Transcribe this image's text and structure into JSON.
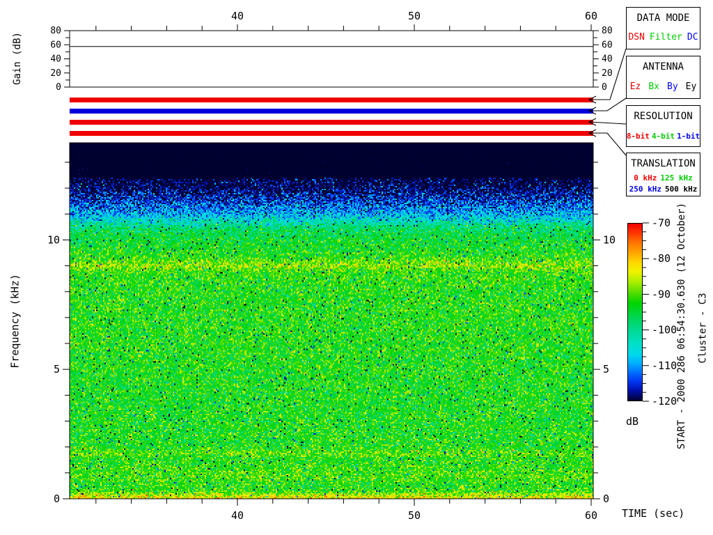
{
  "annotations": {
    "start_label": "START - 2000 286 06:54:30.630 (12 October)",
    "spacecraft_label": "Cluster - C3"
  },
  "gain_plot": {
    "ylabel": "Gain (dB)",
    "y_range_db": [
      0,
      80
    ],
    "y_major_ticks": [
      0,
      20,
      40,
      60,
      80
    ],
    "y_minor_step_db": 10,
    "gain_line_db": 57.5
  },
  "time_axis": {
    "label": "TIME (sec)",
    "range_sec": [
      30.51,
      60.12
    ],
    "major_ticks": [
      40,
      50
    ],
    "minor_step_sec": 2
  },
  "freq_axis": {
    "label": "Frequency (kHz)",
    "range_khz": [
      0,
      13.75
    ],
    "major_ticks": [
      0,
      5,
      10
    ],
    "minor_step_khz": 1
  },
  "status_bars": [
    {
      "name": "data-mode",
      "selected": "DSN",
      "color": "#ee0000"
    },
    {
      "name": "antenna",
      "selected": "By",
      "color": "#0000dd"
    },
    {
      "name": "resolution",
      "selected": "8-bit",
      "color": "#ee0000"
    },
    {
      "name": "translation",
      "selected": "0 kHz",
      "color": "#ee0000"
    }
  ],
  "legend_boxes": [
    {
      "title": "DATA MODE",
      "rows": [
        [
          {
            "label": "DSN",
            "color": "#ee0000"
          },
          {
            "label": "Filter",
            "color": "#00cc00"
          },
          {
            "label": "DC",
            "color": "#0000ee"
          }
        ]
      ]
    },
    {
      "title": "ANTENNA",
      "rows": [
        [
          {
            "label": "Ez",
            "color": "#ee0000"
          },
          {
            "label": "Bx",
            "color": "#00cc00"
          },
          {
            "label": "By",
            "color": "#0000ee"
          },
          {
            "label": "Ey",
            "color": "#000000"
          }
        ]
      ]
    },
    {
      "title": "RESOLUTION",
      "rows": [
        [
          {
            "label": "8-bit",
            "color": "#ee0000"
          },
          {
            "label": "4-bit",
            "color": "#00cc00"
          },
          {
            "label": "1-bit",
            "color": "#0000ee"
          }
        ]
      ]
    },
    {
      "title": "TRANSLATION",
      "rows": [
        [
          {
            "label": "0 kHz",
            "color": "#ee0000"
          },
          {
            "label": "125 kHz",
            "color": "#00cc00"
          }
        ],
        [
          {
            "label": "250 kHz",
            "color": "#0000ee"
          },
          {
            "label": "500 kHz",
            "color": "#000000"
          }
        ]
      ]
    }
  ],
  "colorbar": {
    "unit": "dB",
    "range_db": [
      -70,
      -120
    ],
    "major_ticks": [
      -70,
      -80,
      -90,
      -100,
      -110,
      -120
    ],
    "minor_step_db": 2.5,
    "stops": [
      [
        0.0,
        "#ee0000"
      ],
      [
        0.05,
        "#ff3300"
      ],
      [
        0.11,
        "#ff7700"
      ],
      [
        0.17,
        "#ffaa00"
      ],
      [
        0.22,
        "#ffd800"
      ],
      [
        0.27,
        "#f2f200"
      ],
      [
        0.33,
        "#aaee00"
      ],
      [
        0.39,
        "#55dd00"
      ],
      [
        0.45,
        "#00d500"
      ],
      [
        0.52,
        "#00d549"
      ],
      [
        0.6,
        "#00da91"
      ],
      [
        0.68,
        "#00e0c8"
      ],
      [
        0.74,
        "#00d9ec"
      ],
      [
        0.79,
        "#00aeff"
      ],
      [
        0.84,
        "#0071ff"
      ],
      [
        0.89,
        "#0038f2"
      ],
      [
        0.94,
        "#0012b2"
      ],
      [
        1.0,
        "#010130"
      ]
    ]
  },
  "chart_data": [
    {
      "type": "line",
      "title": "Receiver gain vs time",
      "xlabel": "TIME (sec)",
      "ylabel": "Gain (dB)",
      "x_range": [
        30.51,
        60.12
      ],
      "ylim": [
        0,
        80
      ],
      "series": [
        {
          "name": "gain",
          "shape": "constant",
          "value_db": 57.5
        }
      ]
    },
    {
      "type": "heatmap",
      "subtype": "spectrogram",
      "xlabel": "TIME (sec)",
      "ylabel": "Frequency (kHz)",
      "x_range_sec": [
        30.51,
        60.12
      ],
      "y_range_khz": [
        0,
        13.75
      ],
      "color_range_db": [
        -70,
        -120
      ],
      "profile_points_khz_db": [
        [
          13.75,
          -123
        ],
        [
          12.4,
          -123
        ],
        [
          11.9,
          -119
        ],
        [
          11.4,
          -114
        ],
        [
          11.0,
          -109
        ],
        [
          10.7,
          -103
        ],
        [
          10.45,
          -98
        ],
        [
          10.2,
          -95.5
        ],
        [
          9.7,
          -93.5
        ],
        [
          9.3,
          -92
        ],
        [
          9.0,
          -87
        ],
        [
          8.75,
          -91.5
        ],
        [
          8.0,
          -92.5
        ],
        [
          6.0,
          -92.5
        ],
        [
          4.0,
          -93
        ],
        [
          2.0,
          -93
        ],
        [
          1.75,
          -89.5
        ],
        [
          1.55,
          -92.5
        ],
        [
          0.85,
          -90.5
        ],
        [
          0.55,
          -92.5
        ],
        [
          0.3,
          -91.5
        ],
        [
          0.15,
          -86
        ],
        [
          0.0,
          -82
        ]
      ],
      "sigma_zones": [
        {
          "f_min": 12.4,
          "f_max": 13.75,
          "sigma": 1.2
        },
        {
          "f_min": 10.45,
          "f_max": 12.4,
          "sigma": 5.0
        },
        {
          "f_min": 0.0,
          "f_max": 10.45,
          "sigma": 4.2
        }
      ],
      "speckle": {
        "dark_prob": 0.025,
        "dark_drop_db": 20,
        "bright_prob": 0.01,
        "bright_gain_db": 4
      },
      "features": [
        "near noise floor (~-120 dB, dark navy) above ~11.5 kHz",
        "blue speckle transition ~10.5-11.8 kHz",
        "broadband green background ~-92 dB below ~10 kHz",
        "narrowband yellow-green line near 9 kHz (~-87 dB)",
        "weak enhancement lines near 1.7 kHz and 0.85 kHz",
        "yellow edge below ~0.2 kHz"
      ]
    }
  ]
}
